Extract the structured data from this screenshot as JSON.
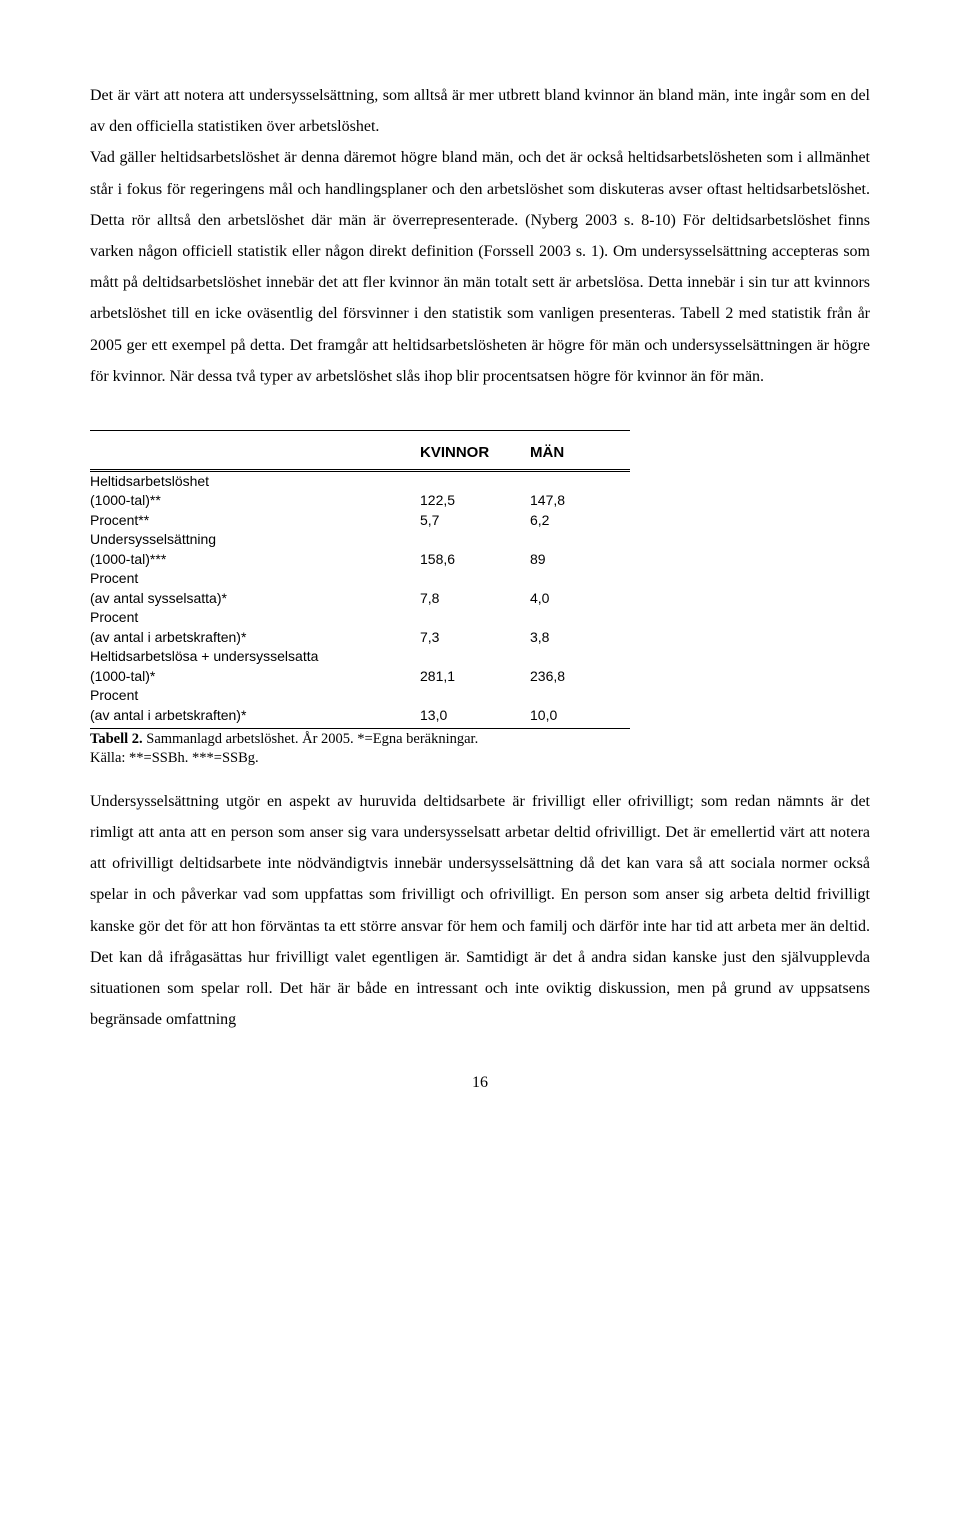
{
  "paragraphs": {
    "p1": "Det är värt att notera att undersysselsättning, som alltså är mer utbrett bland kvinnor än bland män, inte ingår som en del av den officiella statistiken över arbetslöshet.",
    "p2": "Vad gäller heltidsarbetslöshet är denna däremot högre bland män, och det är också heltidsarbetslösheten som i allmänhet står i fokus för regeringens mål och handlingsplaner och den arbetslöshet som diskuteras avser oftast heltidsarbetslöshet. Detta rör alltså den arbetslöshet där män är överrepresenterade. (Nyberg 2003 s. 8-10) För deltidsarbetslöshet finns varken någon officiell statistik eller någon direkt definition (Forssell 2003 s. 1). Om undersysselsättning accepteras som mått på deltidsarbetslöshet innebär det att fler kvinnor än män totalt sett är arbetslösa. Detta innebär i sin tur att kvinnors arbetslöshet till en icke oväsentlig del försvinner i den statistik som vanligen presenteras. Tabell 2 med statistik från år 2005 ger ett exempel på detta. Det framgår att heltidsarbetslösheten är högre för män och undersysselsättningen är högre för kvinnor. När dessa två typer av arbetslöshet slås ihop blir procentsatsen högre för kvinnor än för män.",
    "p3": "Undersysselsättning utgör en aspekt av huruvida deltidsarbete är frivilligt eller ofrivilligt; som redan nämnts är det rimligt att anta att en person som anser sig vara undersysselsatt arbetar deltid ofrivilligt. Det är emellertid värt att notera att ofrivilligt deltidsarbete inte nödvändigtvis innebär undersysselsättning då det kan vara så att sociala normer också spelar in och påverkar vad som uppfattas som frivilligt och ofrivilligt. En person som anser sig arbeta deltid frivilligt kanske gör det för att hon förväntas ta ett större ansvar för hem och familj och därför inte har tid att arbeta mer än deltid. Det kan då ifrågasättas hur frivilligt valet egentligen är. Samtidigt är det å andra sidan kanske just den självupplevda situationen som spelar roll. Det här är både en intressant och inte oviktig diskussion, men på grund av uppsatsens begränsade omfattning"
  },
  "table": {
    "headers": {
      "kvinnor": "KVINNOR",
      "man": "MÄN"
    },
    "rows": [
      {
        "label": "Heltidsarbetslöshet",
        "kvinnor": "",
        "man": ""
      },
      {
        "label": "(1000-tal)**",
        "kvinnor": "122,5",
        "man": "147,8"
      },
      {
        "label": "Procent**",
        "kvinnor": "5,7",
        "man": "6,2"
      },
      {
        "label": "Undersysselsättning",
        "kvinnor": "",
        "man": ""
      },
      {
        "label": "(1000-tal)***",
        "kvinnor": "158,6",
        "man": "89"
      },
      {
        "label": "Procent",
        "kvinnor": "",
        "man": ""
      },
      {
        "label": "(av antal sysselsatta)*",
        "kvinnor": "7,8",
        "man": "4,0"
      },
      {
        "label": "Procent",
        "kvinnor": "",
        "man": ""
      },
      {
        "label": "(av antal i arbetskraften)*",
        "kvinnor": "7,3",
        "man": "3,8"
      },
      {
        "label": "Heltidsarbetslösa + undersysselsatta",
        "kvinnor": "",
        "man": ""
      },
      {
        "label": "(1000-tal)*",
        "kvinnor": "281,1",
        "man": "236,8"
      },
      {
        "label": "Procent",
        "kvinnor": "",
        "man": ""
      },
      {
        "label": "(av antal i arbetskraften)*",
        "kvinnor": "13,0",
        "man": "10,0"
      }
    ],
    "caption_bold": "Tabell 2.",
    "caption_rest": " Sammanlagd arbetslöshet. År 2005. *=Egna beräkningar.",
    "caption_line2": "Källa: **=SSBh. ***=SSBg."
  },
  "page_number": "16"
}
